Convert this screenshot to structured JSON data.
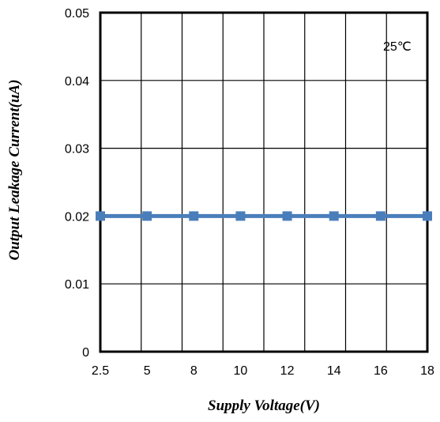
{
  "chart_data": {
    "type": "line",
    "categories": [
      "2.5",
      "5",
      "8",
      "10",
      "12",
      "14",
      "16",
      "18"
    ],
    "series": [
      {
        "values": [
          0.02,
          0.02,
          0.02,
          0.02,
          0.02,
          0.02,
          0.02,
          0.02
        ],
        "color": "#4a7ebb"
      }
    ],
    "title": "",
    "xlabel": "Supply Voltage(V)",
    "ylabel": "Output Leakage Current(uA)",
    "ylim": [
      0,
      0.05
    ],
    "yticks": [
      "0",
      "0.01",
      "0.02",
      "0.03",
      "0.04",
      "0.05"
    ],
    "grid": true,
    "annotation": "25℃"
  }
}
